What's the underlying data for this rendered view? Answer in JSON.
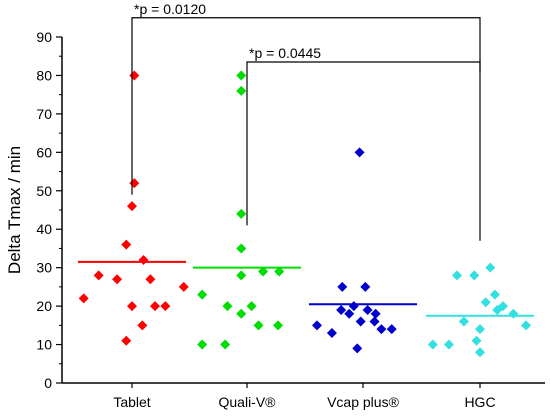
{
  "chart_data": {
    "type": "scatter",
    "title": "",
    "xlabel": "",
    "ylabel": "Delta Tmax / min",
    "ylim": [
      0,
      90
    ],
    "yticks": [
      0,
      10,
      20,
      30,
      40,
      50,
      60,
      70,
      80,
      90
    ],
    "grid": false,
    "categories": [
      "Tablet",
      "Quali-V®",
      "Vcap plus®",
      "HGC"
    ],
    "series": [
      {
        "category": "Tablet",
        "color": "#ff0000",
        "mean": 31.5,
        "points": [
          {
            "x": -0.42,
            "y": 22
          },
          {
            "x": -0.29,
            "y": 28
          },
          {
            "x": -0.13,
            "y": 27
          },
          {
            "x": -0.05,
            "y": 11
          },
          {
            "x": -0.05,
            "y": 36
          },
          {
            "x": 0.02,
            "y": 80
          },
          {
            "x": 0.02,
            "y": 52
          },
          {
            "x": 0.0,
            "y": 46
          },
          {
            "x": 0.1,
            "y": 32
          },
          {
            "x": 0.0,
            "y": 20
          },
          {
            "x": 0.09,
            "y": 15
          },
          {
            "x": 0.16,
            "y": 27
          },
          {
            "x": 0.2,
            "y": 20
          },
          {
            "x": 0.29,
            "y": 20
          },
          {
            "x": 0.45,
            "y": 25
          }
        ]
      },
      {
        "category": "Quali-V®",
        "color": "#00dd00",
        "mean": 30,
        "points": [
          {
            "x": -0.39,
            "y": 23
          },
          {
            "x": -0.39,
            "y": 10
          },
          {
            "x": -0.19,
            "y": 10
          },
          {
            "x": -0.17,
            "y": 20
          },
          {
            "x": -0.05,
            "y": 18
          },
          {
            "x": 0.04,
            "y": 20
          },
          {
            "x": 0.1,
            "y": 15
          },
          {
            "x": 0.14,
            "y": 29
          },
          {
            "x": 0.27,
            "y": 15
          },
          {
            "x": 0.28,
            "y": 29
          },
          {
            "x": -0.05,
            "y": 28
          },
          {
            "x": -0.05,
            "y": 35
          },
          {
            "x": -0.05,
            "y": 44
          },
          {
            "x": -0.05,
            "y": 76
          },
          {
            "x": -0.05,
            "y": 80
          }
        ]
      },
      {
        "category": "Vcap plus®",
        "color": "#0000cc",
        "mean": 20.5,
        "points": [
          {
            "x": -0.4,
            "y": 15
          },
          {
            "x": -0.27,
            "y": 13
          },
          {
            "x": -0.19,
            "y": 19
          },
          {
            "x": -0.18,
            "y": 25
          },
          {
            "x": -0.12,
            "y": 18
          },
          {
            "x": -0.08,
            "y": 20
          },
          {
            "x": -0.05,
            "y": 9
          },
          {
            "x": -0.03,
            "y": 60
          },
          {
            "x": 0.02,
            "y": 25
          },
          {
            "x": 0.04,
            "y": 19
          },
          {
            "x": 0.1,
            "y": 16
          },
          {
            "x": 0.16,
            "y": 14
          },
          {
            "x": 0.25,
            "y": 14
          },
          {
            "x": 0.11,
            "y": 18
          },
          {
            "x": -0.02,
            "y": 16
          }
        ]
      },
      {
        "category": "HGC",
        "color": "#33e0e0",
        "mean": 17.5,
        "points": [
          {
            "x": -0.41,
            "y": 10
          },
          {
            "x": -0.27,
            "y": 10
          },
          {
            "x": -0.2,
            "y": 28
          },
          {
            "x": -0.14,
            "y": 16
          },
          {
            "x": -0.05,
            "y": 28
          },
          {
            "x": -0.03,
            "y": 11
          },
          {
            "x": 0.0,
            "y": 14
          },
          {
            "x": 0.05,
            "y": 21
          },
          {
            "x": 0.0,
            "y": 8
          },
          {
            "x": 0.09,
            "y": 30
          },
          {
            "x": 0.13,
            "y": 23
          },
          {
            "x": 0.15,
            "y": 19
          },
          {
            "x": 0.2,
            "y": 20
          },
          {
            "x": 0.29,
            "y": 18
          },
          {
            "x": 0.4,
            "y": 15
          }
        ]
      }
    ],
    "annotations": [
      {
        "label": "*p = 0.0120",
        "from": "Tablet",
        "to": "HGC",
        "y": 95
      },
      {
        "label": "*p = 0.0445",
        "from": "Quali-V®",
        "to": "HGC",
        "y": 83.5
      }
    ]
  }
}
